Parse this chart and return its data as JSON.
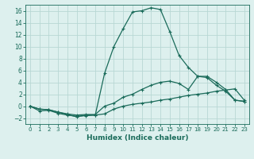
{
  "xlabel": "Humidex (Indice chaleur)",
  "bg_color": "#ddf0ee",
  "grid_color": "#b8d8d4",
  "line_color": "#1a6b5a",
  "xlim": [
    -0.5,
    23.5
  ],
  "ylim": [
    -3,
    17
  ],
  "xticks": [
    0,
    1,
    2,
    3,
    4,
    5,
    6,
    7,
    8,
    9,
    10,
    11,
    12,
    13,
    14,
    15,
    16,
    17,
    18,
    19,
    20,
    21,
    22,
    23
  ],
  "yticks": [
    -2,
    0,
    2,
    4,
    6,
    8,
    10,
    12,
    14,
    16
  ],
  "line1_x": [
    0,
    1,
    2,
    3,
    4,
    5,
    6,
    7,
    8,
    9,
    10,
    11,
    12,
    13,
    14,
    15,
    16,
    17,
    18,
    19,
    20,
    21,
    22,
    23
  ],
  "line1_y": [
    0,
    -0.8,
    -0.7,
    -1.2,
    -1.5,
    -1.7,
    -1.6,
    -1.5,
    -1.3,
    -0.5,
    0.0,
    0.3,
    0.5,
    0.7,
    1.0,
    1.2,
    1.5,
    1.8,
    2.0,
    2.2,
    2.5,
    2.7,
    2.9,
    1.0
  ],
  "line2_x": [
    0,
    1,
    2,
    3,
    4,
    5,
    6,
    7,
    8,
    9,
    10,
    11,
    12,
    13,
    14,
    15,
    16,
    17,
    18,
    19,
    20,
    21,
    22,
    23
  ],
  "line2_y": [
    0,
    -0.5,
    -0.6,
    -1.0,
    -1.3,
    -1.5,
    -1.4,
    -1.4,
    0.0,
    0.5,
    1.5,
    2.0,
    2.8,
    3.5,
    4.0,
    4.2,
    3.8,
    2.8,
    5.0,
    4.8,
    3.5,
    2.5,
    1.0,
    0.8
  ],
  "line3_x": [
    0,
    1,
    2,
    3,
    4,
    5,
    6,
    7,
    8,
    9,
    10,
    11,
    12,
    13,
    14,
    15,
    16,
    17,
    18,
    19,
    20,
    21,
    22,
    23
  ],
  "line3_y": [
    0,
    -0.5,
    -0.6,
    -1.0,
    -1.4,
    -1.8,
    -1.5,
    -1.5,
    5.5,
    10.0,
    13.0,
    15.8,
    16.0,
    16.5,
    16.2,
    12.5,
    8.5,
    6.5,
    5.0,
    5.0,
    4.0,
    2.8,
    1.0,
    0.8
  ]
}
